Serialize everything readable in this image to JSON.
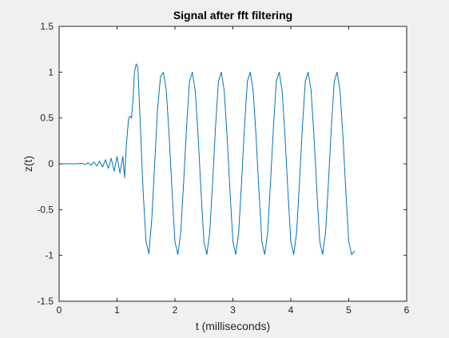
{
  "figure": {
    "background": "#f0f0f0"
  },
  "chart_data": {
    "type": "line",
    "title": "Signal after fft filtering",
    "xlabel": "t (milliseconds)",
    "ylabel": "z(t)",
    "xlim": [
      0,
      6
    ],
    "ylim": [
      -1.5,
      1.5
    ],
    "xticks": [
      0,
      1,
      2,
      3,
      4,
      5,
      6
    ],
    "xtick_labels": [
      "0",
      "1",
      "2",
      "3",
      "4",
      "5",
      "6"
    ],
    "yticks": [
      -1.5,
      -1,
      -0.5,
      0,
      0.5,
      1,
      1.5
    ],
    "ytick_labels": [
      "-1.5",
      "-1",
      "-0.5",
      "0",
      "0.5",
      "1",
      "1.5"
    ],
    "grid": false,
    "box": true,
    "series": [
      {
        "color": "#0072bd",
        "x": [
          0,
          0.3,
          0.4,
          0.45,
          0.5,
          0.55,
          0.6,
          0.65,
          0.7,
          0.75,
          0.8,
          0.85,
          0.9,
          0.95,
          1.0,
          1.05,
          1.1,
          1.13,
          1.16,
          1.2,
          1.23,
          1.25,
          1.28,
          1.3,
          1.33,
          1.36,
          1.39,
          1.45,
          1.5,
          1.55,
          1.6,
          1.65,
          1.7,
          1.75,
          1.8,
          1.85,
          1.9,
          1.95,
          2.0,
          2.05,
          2.1,
          2.15,
          2.2,
          2.25,
          2.3,
          2.35,
          2.4,
          2.45,
          2.5,
          2.55,
          2.6,
          2.65,
          2.7,
          2.75,
          2.8,
          2.85,
          2.9,
          2.95,
          3.0,
          3.05,
          3.1,
          3.15,
          3.2,
          3.25,
          3.3,
          3.35,
          3.4,
          3.45,
          3.5,
          3.55,
          3.6,
          3.65,
          3.7,
          3.75,
          3.8,
          3.85,
          3.9,
          3.95,
          4.0,
          4.05,
          4.1,
          4.15,
          4.2,
          4.25,
          4.3,
          4.35,
          4.4,
          4.45,
          4.5,
          4.55,
          4.6,
          4.65,
          4.7,
          4.75,
          4.8,
          4.85,
          4.9,
          4.95,
          5.0,
          5.05,
          5.1
        ],
        "y": [
          0,
          0,
          0.005,
          -0.008,
          0.012,
          -0.015,
          0.02,
          -0.025,
          0.03,
          -0.035,
          0.045,
          -0.05,
          0.06,
          -0.08,
          0.08,
          -0.1,
          0.08,
          -0.15,
          0.2,
          0.5,
          0.52,
          0.5,
          0.75,
          1.0,
          1.09,
          1.05,
          0.6,
          -0.3,
          -0.85,
          -0.98,
          -0.6,
          0.0,
          0.6,
          0.95,
          1.0,
          0.8,
          0.3,
          -0.3,
          -0.85,
          -0.99,
          -0.75,
          -0.2,
          0.4,
          0.9,
          1.0,
          0.8,
          0.3,
          -0.3,
          -0.85,
          -0.99,
          -0.75,
          -0.2,
          0.4,
          0.9,
          1.0,
          0.8,
          0.3,
          -0.3,
          -0.85,
          -0.99,
          -0.75,
          -0.2,
          0.4,
          0.9,
          1.0,
          0.8,
          0.3,
          -0.3,
          -0.85,
          -0.99,
          -0.75,
          -0.2,
          0.4,
          0.9,
          1.0,
          0.8,
          0.3,
          -0.3,
          -0.85,
          -0.99,
          -0.75,
          -0.2,
          0.4,
          0.9,
          1.0,
          0.8,
          0.3,
          -0.3,
          -0.85,
          -0.99,
          -0.75,
          -0.2,
          0.4,
          0.9,
          1.0,
          0.8,
          0.3,
          -0.3,
          -0.85,
          -0.99,
          -0.95
        ]
      }
    ]
  }
}
